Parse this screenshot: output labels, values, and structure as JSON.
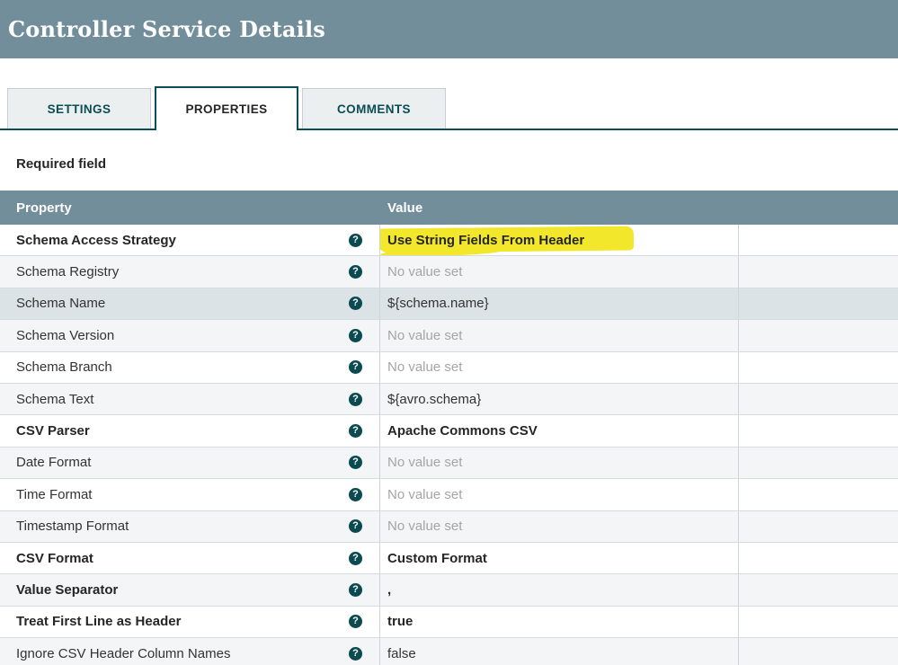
{
  "header": {
    "title": "Controller Service Details"
  },
  "tabs": [
    {
      "label": "SETTINGS",
      "active": false
    },
    {
      "label": "PROPERTIES",
      "active": true
    },
    {
      "label": "COMMENTS",
      "active": false
    }
  ],
  "required_note": "Required field",
  "icons": {
    "help_glyph": "?"
  },
  "colors": {
    "header_bg": "#728e9b",
    "accent_teal": "#0a4d55",
    "highlight_yellow": "#f2e72b",
    "row_hover": "#dce3e6",
    "row_alt": "#f3f5f6",
    "unset_text": "#a5a5a5"
  },
  "table": {
    "columns": [
      "Property",
      "Value"
    ],
    "rows": [
      {
        "property": "Schema Access Strategy",
        "value": "Use String Fields From Header"
      },
      {
        "property": "Schema Registry",
        "value": "No value set"
      },
      {
        "property": "Schema Name",
        "value": "${schema.name}"
      },
      {
        "property": "Schema Version",
        "value": "No value set"
      },
      {
        "property": "Schema Branch",
        "value": "No value set"
      },
      {
        "property": "Schema Text",
        "value": "${avro.schema}"
      },
      {
        "property": "CSV Parser",
        "value": "Apache Commons CSV"
      },
      {
        "property": "Date Format",
        "value": "No value set"
      },
      {
        "property": "Time Format",
        "value": "No value set"
      },
      {
        "property": "Timestamp Format",
        "value": "No value set"
      },
      {
        "property": "CSV Format",
        "value": "Custom Format"
      },
      {
        "property": "Value Separator",
        "value": ","
      },
      {
        "property": "Treat First Line as Header",
        "value": "true"
      },
      {
        "property": "Ignore CSV Header Column Names",
        "value": "false"
      }
    ]
  },
  "annotation": {
    "highlighted_value": "Use String Fields From Header"
  }
}
